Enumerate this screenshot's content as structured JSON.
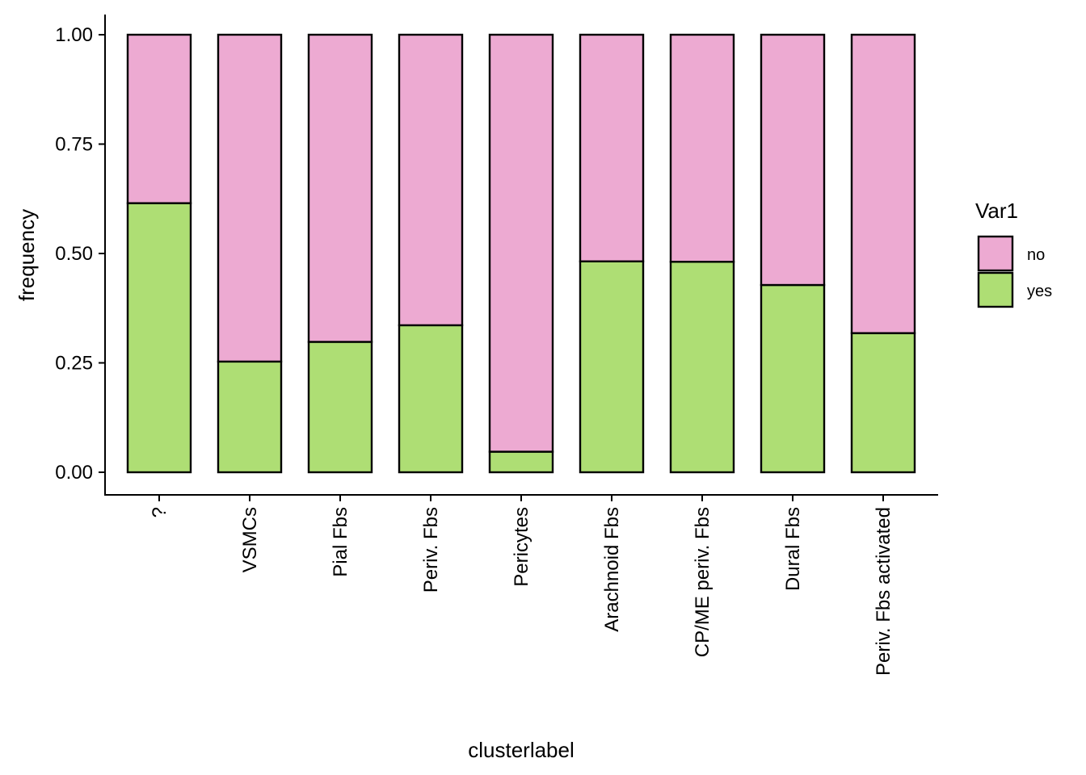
{
  "chart_data": {
    "type": "bar",
    "stacked": true,
    "categories": [
      "?",
      "VSMCs",
      "Pial Fbs",
      "Periv. Fbs",
      "Pericytes",
      "Arachnoid Fbs",
      "CP/ME periv. Fbs",
      "Dural Fbs",
      "Periv. Fbs activated"
    ],
    "series": [
      {
        "name": "yes",
        "color": "#aede74",
        "values": [
          0.615,
          0.253,
          0.298,
          0.336,
          0.047,
          0.482,
          0.481,
          0.428,
          0.318
        ]
      },
      {
        "name": "no",
        "color": "#edaad2",
        "values": [
          0.385,
          0.747,
          0.702,
          0.664,
          0.953,
          0.518,
          0.519,
          0.572,
          0.682
        ]
      }
    ],
    "xlabel": "clusterlabel",
    "ylabel": "frequency",
    "ylim": [
      0,
      1
    ],
    "yticks": [
      0,
      0.25,
      0.5,
      0.75,
      1
    ],
    "ytick_labels": [
      "0.00",
      "0.25",
      "0.50",
      "0.75",
      "1.00"
    ],
    "grid": false,
    "legend": {
      "title": "Var1",
      "placement": "right",
      "entries": [
        {
          "label": "no",
          "color": "#edaad2"
        },
        {
          "label": "yes",
          "color": "#aede74"
        }
      ]
    }
  }
}
